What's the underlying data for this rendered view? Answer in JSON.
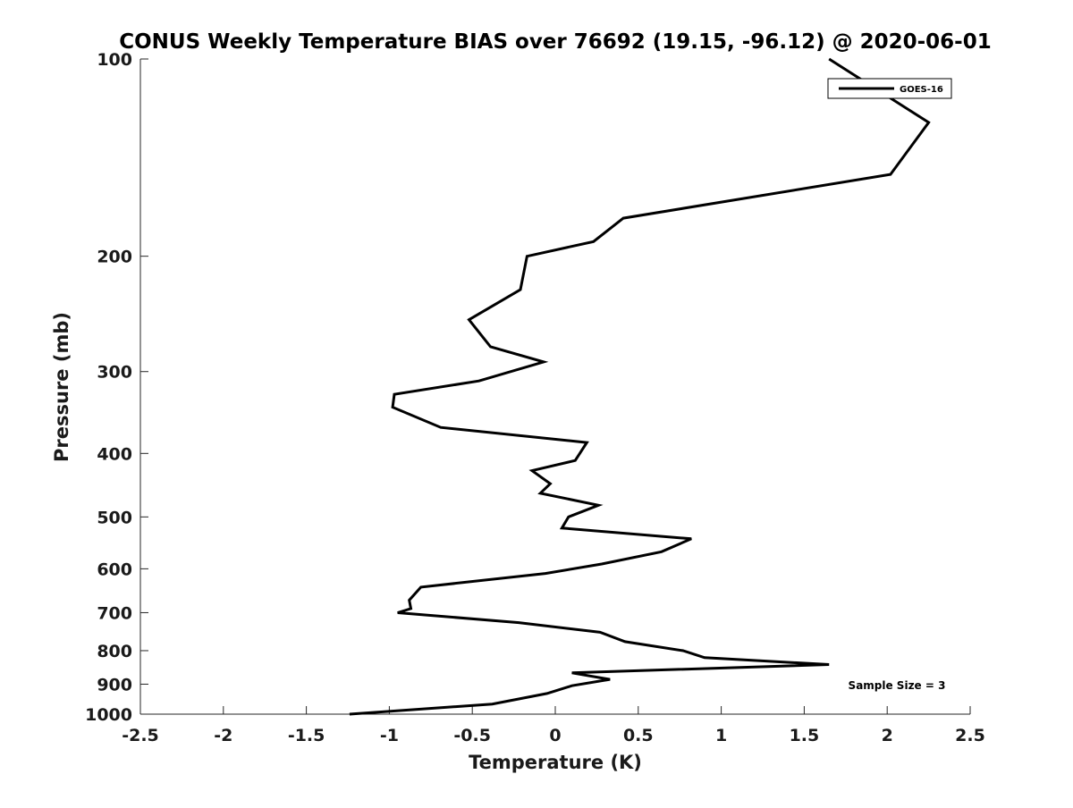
{
  "chart_data": {
    "type": "line",
    "title": "CONUS Weekly Temperature BIAS over 76692 (19.15, -96.12) @ 2020-06-01",
    "xlabel": "Temperature (K)",
    "ylabel": "Pressure (mb)",
    "xlim": [
      -2.5,
      2.5
    ],
    "ylim": [
      1000,
      100
    ],
    "yscale": "log",
    "y_inverted": true,
    "x_ticks": [
      -2.5,
      -2,
      -1.5,
      -1,
      -0.5,
      0,
      0.5,
      1,
      1.5,
      2,
      2.5
    ],
    "x_tick_labels": [
      "-2.5",
      "-2",
      "-1.5",
      "-1",
      "-0.5",
      "0",
      "0.5",
      "1",
      "1.5",
      "2",
      "2.5"
    ],
    "y_ticks": [
      100,
      200,
      300,
      400,
      500,
      600,
      700,
      800,
      900,
      1000
    ],
    "y_tick_labels": [
      "100",
      "200",
      "300",
      "400",
      "500",
      "600",
      "700",
      "800",
      "900",
      "1000"
    ],
    "grid": false,
    "legend_position": "top-right",
    "annotations": [
      {
        "text": "Sample Size = 3",
        "x": 2.0,
        "y": 900
      }
    ],
    "series": [
      {
        "name": "GOES-16",
        "color": "#000000",
        "x": [
          1.65,
          2.25,
          2.02,
          0.41,
          0.23,
          -0.17,
          -0.21,
          -0.52,
          -0.39,
          -0.07,
          -0.46,
          -0.97,
          -0.98,
          -0.69,
          0.19,
          0.12,
          -0.14,
          -0.03,
          -0.09,
          0.26,
          0.08,
          0.04,
          0.82,
          0.64,
          0.28,
          -0.06,
          -0.81,
          -0.88,
          -0.87,
          -0.95,
          -0.22,
          0.27,
          0.42,
          0.77,
          0.9,
          1.65,
          0.1,
          0.33,
          0.1,
          -0.05,
          -0.38,
          -1.24
        ],
        "y": [
          100,
          125,
          150,
          175,
          190,
          200,
          225,
          250,
          275,
          290,
          310,
          325,
          340,
          365,
          385,
          410,
          425,
          445,
          460,
          480,
          500,
          520,
          540,
          565,
          590,
          610,
          640,
          670,
          690,
          700,
          725,
          750,
          775,
          800,
          820,
          840,
          865,
          885,
          905,
          930,
          965,
          1000
        ]
      }
    ]
  }
}
